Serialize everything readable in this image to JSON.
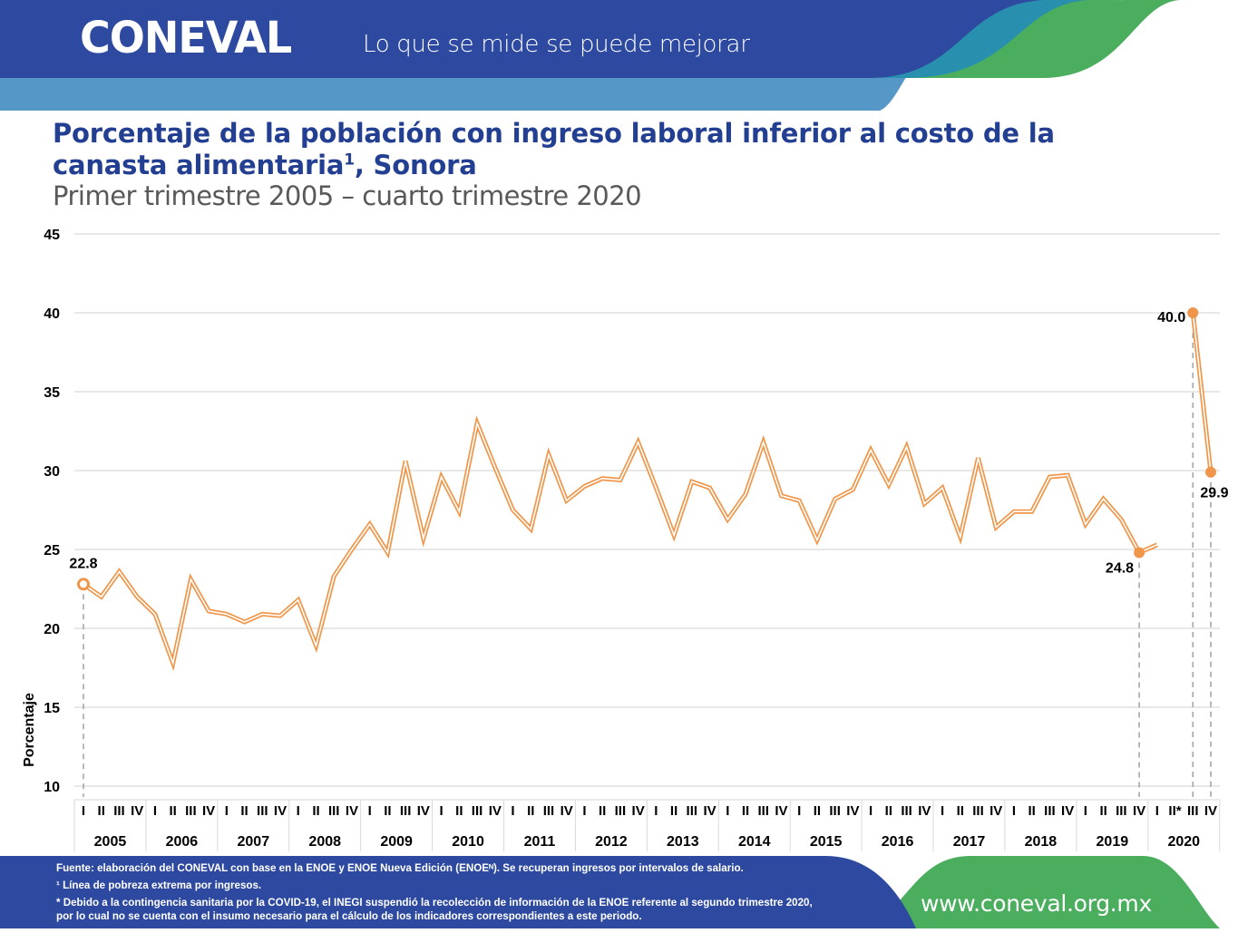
{
  "header": {
    "logo_text": "CONEVAL",
    "tagline": "Lo que se mide se puede mejorar",
    "colors": {
      "dark_blue": "#2e4aa0",
      "light_blue": "#5597c6",
      "teal": "#2890ae",
      "green": "#4aae5e"
    }
  },
  "title": {
    "line1": "Porcentaje de la población con ingreso laboral inferior al costo de la",
    "line2_pre": "canasta alimentaria",
    "line2_sup": "1",
    "line2_post": ", Sonora",
    "subtitle": "Primer trimestre 2005 – cuarto trimestre 2020"
  },
  "chart_data": {
    "type": "line",
    "title": "Porcentaje de la población con ingreso laboral inferior al costo de la canasta alimentaria, Sonora",
    "xlabel": "",
    "ylabel": "Porcentaje",
    "ylim": [
      10,
      45
    ],
    "yticks": [
      10,
      15,
      20,
      25,
      30,
      35,
      40,
      45
    ],
    "grid": true,
    "line_color": "#f0964a",
    "years": [
      "2005",
      "2006",
      "2007",
      "2008",
      "2009",
      "2010",
      "2011",
      "2012",
      "2013",
      "2014",
      "2015",
      "2016",
      "2017",
      "2018",
      "2019",
      "2020"
    ],
    "quarter_labels": [
      "I",
      "II",
      "III",
      "IV"
    ],
    "quarter_labels_2020": [
      "I",
      "II*",
      "III",
      "IV"
    ],
    "series": [
      {
        "name": "Sonora",
        "values": [
          22.8,
          22.0,
          23.6,
          22.0,
          20.9,
          17.8,
          23.1,
          21.1,
          20.9,
          20.4,
          20.9,
          20.8,
          21.8,
          18.9,
          23.3,
          25.0,
          26.6,
          24.8,
          30.6,
          25.7,
          29.6,
          27.4,
          33.0,
          30.2,
          27.5,
          26.3,
          31.0,
          28.1,
          29.0,
          29.5,
          29.4,
          31.8,
          28.9,
          25.9,
          29.3,
          28.9,
          26.9,
          28.5,
          31.8,
          28.4,
          28.1,
          25.6,
          28.2,
          28.8,
          31.3,
          29.1,
          31.5,
          27.9,
          28.9,
          25.8,
          30.8,
          26.4,
          27.4,
          27.4,
          29.6,
          29.7,
          26.6,
          28.2,
          26.9,
          24.8,
          25.3,
          null,
          40.0,
          29.9
        ]
      }
    ],
    "annotations": [
      {
        "index": 0,
        "label": "22.8",
        "marker": "hollow"
      },
      {
        "index": 59,
        "label": "24.8",
        "marker": "filled"
      },
      {
        "index": 62,
        "label": "40.0",
        "marker": "filled"
      },
      {
        "index": 63,
        "label": "29.9",
        "marker": "filled"
      }
    ]
  },
  "footer": {
    "source": "Fuente: elaboración del CONEVAL  con base en la ENOE y ENOE Nueva Edición (ENOEᴺ).  Se recuperan ingresos por intervalos de salario.",
    "note1": "¹ Línea de pobreza extrema por ingresos.",
    "note2a": "* Debido a la  contingencia sanitaria por la COVID-19,  el  INEGI suspendió la recolección de información de la ENOE referente al segundo trimestre 2020,",
    "note2b": "por lo cual no se cuenta con el insumo necesario para el  cálculo de los indicadores correspondientes a este periodo.",
    "url": "www.coneval.org.mx"
  }
}
